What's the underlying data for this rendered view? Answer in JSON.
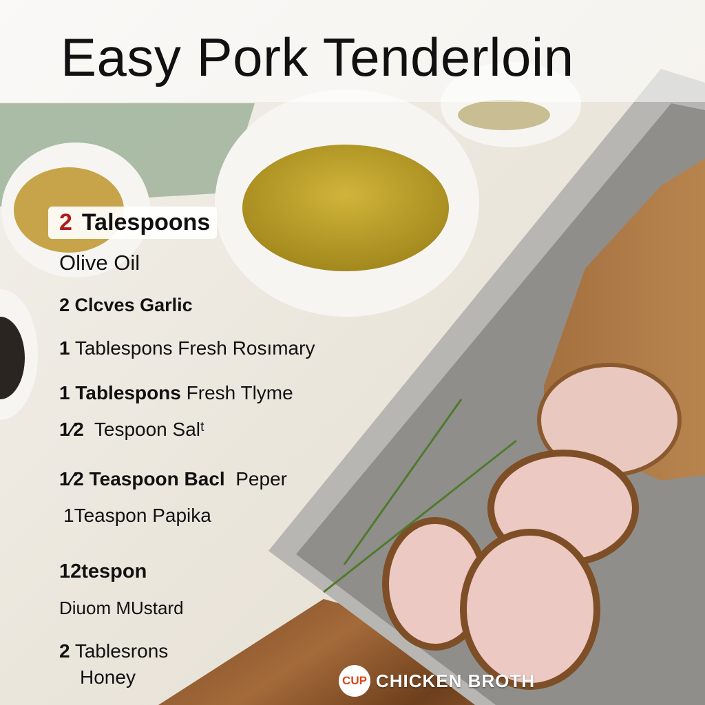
{
  "title": "Easy Pork Tenderloin",
  "ingredients": [
    {
      "amount": "2",
      "text": "Talespoons"
    },
    {
      "text": "Olive Oil"
    },
    {
      "text": "2 Clcves Garlic"
    },
    {
      "amount": "1",
      "text": "Tablespons Fresh Rosımary"
    },
    {
      "amount": "1 Tablespons",
      "text": "Fresh Tlyme"
    },
    {
      "amount": "1⁄2",
      "text": "Tespoon Salᵗ"
    },
    {
      "amount": "1⁄2 Teaspoon Bacl",
      "text": "Peper"
    },
    {
      "text": "1Teaspon Papika"
    },
    {
      "text": "12tespon"
    },
    {
      "text": "Diuom MUstard"
    },
    {
      "amount": "2",
      "text": "Tablesrons"
    },
    {
      "text": "Honey"
    }
  ],
  "logo": {
    "badge": "CUP",
    "text": "CHICKEN BROTH"
  },
  "colors": {
    "accent": "#b01c1c",
    "badge": "#d9461a"
  }
}
